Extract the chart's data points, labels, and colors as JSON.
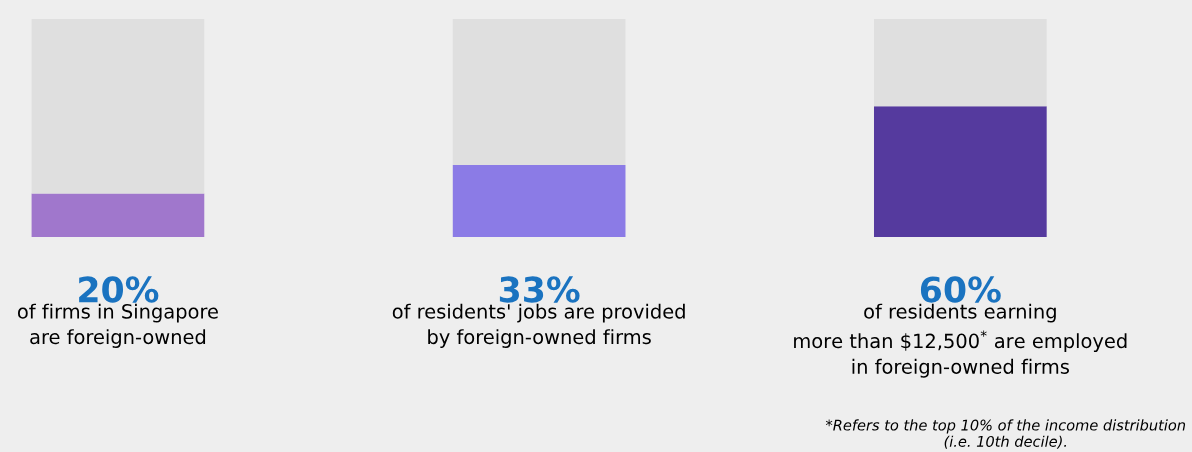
{
  "chart_data": {
    "type": "bar",
    "stacked": true,
    "categories": [
      "of firms in Singapore\nare foreign-owned",
      "of residents' jobs are provided\nby foreign-owned firms",
      "of residents earning\nmore than $12,500$^{*}$ are employed\nin foreign-owned firms"
    ],
    "series": [
      {
        "color": "#a077cc",
        "colors": [
          "#a077cc",
          "#8b7be6",
          "#553a9e"
        ],
        "values": [
          20,
          33,
          60
        ],
        "value_labels": [
          "20%",
          "33%",
          "60%"
        ]
      },
      {
        "color": "#dfdfdf",
        "values": [
          80,
          67,
          40
        ]
      }
    ],
    "ylim": [
      0,
      100
    ],
    "tick_labels": "x",
    "grid": false,
    "legend": false,
    "annotations": [
      "*Refers to the top 10% of the income distribution\n(i.e. 10th decile)."
    ]
  }
}
